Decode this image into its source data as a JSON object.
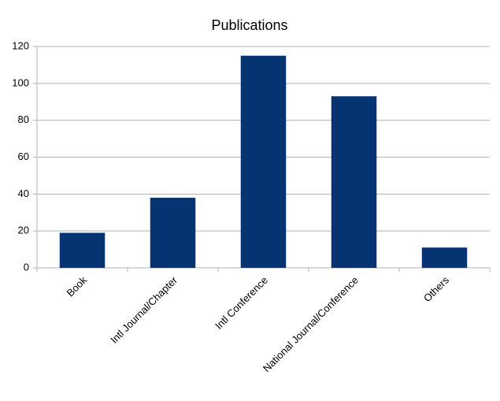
{
  "chart_data": {
    "type": "bar",
    "title": "Publications",
    "categories": [
      "Book",
      "Intl Journal/Chapter",
      "Intl Conference",
      "National Journal/Conference",
      "Others"
    ],
    "values": [
      19,
      38,
      115,
      93,
      11
    ],
    "color": "#063473",
    "ylim": [
      0,
      120
    ],
    "yticks": [
      0,
      20,
      40,
      60,
      80,
      100,
      120
    ],
    "grid": true
  }
}
